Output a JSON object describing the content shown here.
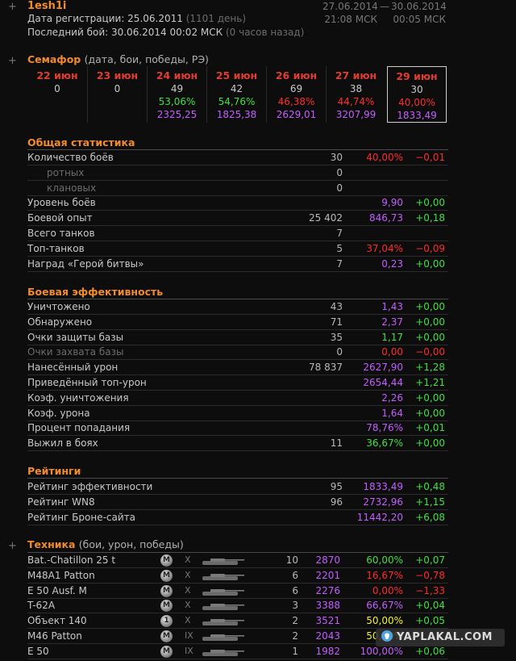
{
  "header": {
    "name": "1esh1i",
    "reg_label": "Дата регистрации: 25.06.2011",
    "reg_days": "(1101 день)",
    "last_label": "Последний бой: 30.06.2014 00:02 МСК",
    "last_ago": "(0 часов назад)",
    "date_from": "27.06.2014",
    "time_from": "21:08 МСК",
    "date_sep": "—",
    "date_to": "30.06.2014",
    "time_to": "00:05 МСК"
  },
  "semafor": {
    "title": "Семафор",
    "subtitle": "(дата, бои, победы, РЭ)",
    "days": [
      {
        "day": "22 июн",
        "battles": "0",
        "wins": "",
        "re": "",
        "wins_color": "#3fe03f"
      },
      {
        "day": "23 июн",
        "battles": "0",
        "wins": "",
        "re": "",
        "wins_color": "#3fe03f"
      },
      {
        "day": "24 июн",
        "battles": "49",
        "wins": "53,06%",
        "re": "2325,25",
        "wins_color": "#3fe03f"
      },
      {
        "day": "25 июн",
        "battles": "42",
        "wins": "54,76%",
        "re": "1825,38",
        "wins_color": "#3fe03f"
      },
      {
        "day": "26 июн",
        "battles": "69",
        "wins": "46,38%",
        "re": "2629,01",
        "wins_color": "#ff2a2a"
      },
      {
        "day": "27 июн",
        "battles": "38",
        "wins": "44,74%",
        "re": "3207,99",
        "wins_color": "#ff2a2a"
      },
      {
        "day": "29 июн",
        "battles": "30",
        "wins": "40,00%",
        "re": "1833,49",
        "wins_color": "#ff2a2a",
        "current": true
      }
    ]
  },
  "general": {
    "title": "Общая статистика",
    "rows": [
      {
        "label": "Количество боёв",
        "v1": "30",
        "v2": "40,00%",
        "v2c": "red",
        "v3": "−0,01",
        "v3c": "red"
      },
      {
        "label": "ротных",
        "v1": "0",
        "indent": true
      },
      {
        "label": "клановых",
        "v1": "0",
        "indent": true
      },
      {
        "label": "Уровень боёв",
        "v2": "9,90",
        "v2c": "purple",
        "v3": "+0,00",
        "v3c": "green"
      },
      {
        "label": "Боевой опыт",
        "v1": "25 402",
        "v2": "846,73",
        "v2c": "purple",
        "v3": "+0,18",
        "v3c": "green"
      },
      {
        "label": "Всего танков",
        "v1": "7"
      },
      {
        "label": "Топ-танков",
        "v1": "5",
        "v2": "37,04%",
        "v2c": "red",
        "v3": "−0,09",
        "v3c": "red"
      },
      {
        "label": "Наград «Герой битвы»",
        "v1": "7",
        "v2": "0,23",
        "v2c": "purple",
        "v3": "+0,00",
        "v3c": "green"
      }
    ]
  },
  "combat": {
    "title": "Боевая эффективность",
    "rows": [
      {
        "label": "Уничтожено",
        "v1": "43",
        "v2": "1,43",
        "v2c": "purple",
        "v3": "+0,00",
        "v3c": "green"
      },
      {
        "label": "Обнаружено",
        "v1": "71",
        "v2": "2,37",
        "v2c": "purple",
        "v3": "+0,00",
        "v3c": "green"
      },
      {
        "label": "Очки защиты базы",
        "v1": "35",
        "v2": "1,17",
        "v2c": "green",
        "v3": "+0,00",
        "v3c": "green"
      },
      {
        "label": "Очки захвата базы",
        "v1": "0",
        "v2": "0,00",
        "v2c": "red",
        "v3": "−0,00",
        "v3c": "red",
        "dim": true
      },
      {
        "label": "Нанесённый урон",
        "v1": "78 837",
        "v2": "2627,90",
        "v2c": "purple",
        "v3": "+1,28",
        "v3c": "green"
      },
      {
        "label": "Приведённый топ-урон",
        "v2": "2654,44",
        "v2c": "purple",
        "v3": "+1,21",
        "v3c": "green"
      },
      {
        "label": "Коэф. уничтожения",
        "v2": "2,26",
        "v2c": "purple",
        "v3": "+0,00",
        "v3c": "green"
      },
      {
        "label": "Коэф. урона",
        "v2": "1,64",
        "v2c": "purple",
        "v3": "+0,00",
        "v3c": "green"
      },
      {
        "label": "Процент попадания",
        "v2": "78,76%",
        "v2c": "purple",
        "v3": "+0,01",
        "v3c": "green"
      },
      {
        "label": "Выжил в боях",
        "v1": "11",
        "v2": "36,67%",
        "v2c": "green",
        "v3": "+0,00",
        "v3c": "green"
      }
    ]
  },
  "ratings": {
    "title": "Рейтинги",
    "rows": [
      {
        "label": "Рейтинг эффективности",
        "v1": "95",
        "v2": "1833,49",
        "v2c": "purple",
        "v3": "+0,48",
        "v3c": "green"
      },
      {
        "label": "Рейтинг WN8",
        "v1": "96",
        "v2": "2732,96",
        "v2c": "purple",
        "v3": "+1,15",
        "v3c": "green"
      },
      {
        "label": "Рейтинг Броне-сайта",
        "v2": "11442,20",
        "v2c": "purple",
        "v3": "+6,08",
        "v3c": "green"
      }
    ]
  },
  "tanks": {
    "title": "Техника",
    "subtitle": "(бои, урон, победы)",
    "rows": [
      {
        "name": "Bat.-Chatillon 25 t",
        "medal": "M",
        "tier": "X",
        "battles": "10",
        "dmg": "2870",
        "wr": "60,00%",
        "wrc": "green",
        "delta": "+0,07",
        "dc": "green"
      },
      {
        "name": "M48A1 Patton",
        "medal": "M",
        "tier": "X",
        "battles": "6",
        "dmg": "2201",
        "wr": "16,67%",
        "wrc": "red",
        "delta": "−0,78",
        "dc": "red"
      },
      {
        "name": "E 50 Ausf. M",
        "medal": "M",
        "tier": "X",
        "battles": "6",
        "dmg": "2276",
        "wr": "0,00%",
        "wrc": "red",
        "delta": "−1,33",
        "dc": "red"
      },
      {
        "name": "T-62A",
        "medal": "M",
        "tier": "X",
        "battles": "3",
        "dmg": "3388",
        "wr": "66,67%",
        "wrc": "purple",
        "delta": "+0,04",
        "dc": "green"
      },
      {
        "name": "Объект 140",
        "medal": "1",
        "tier": "X",
        "battles": "2",
        "dmg": "3521",
        "wr": "50,00%",
        "wrc": "yellow",
        "delta": "+0,05",
        "dc": "green"
      },
      {
        "name": "M46 Patton",
        "medal": "M",
        "tier": "IX",
        "battles": "2",
        "dmg": "2043",
        "wr": "50,00%",
        "wrc": "yellow",
        "delta": "",
        "dc": "green"
      },
      {
        "name": "E 50",
        "medal": "M",
        "tier": "IX",
        "battles": "1",
        "dmg": "1982",
        "wr": "100,00%",
        "wrc": "purple",
        "delta": "+0,06",
        "dc": "green"
      }
    ]
  },
  "watermark": "YAPLAKAL.COM"
}
